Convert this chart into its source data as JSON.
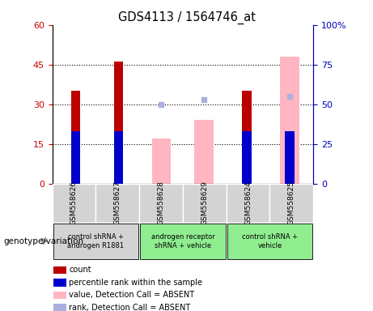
{
  "title": "GDS4113 / 1564746_at",
  "samples": [
    "GSM558626",
    "GSM558627",
    "GSM558628",
    "GSM558629",
    "GSM558624",
    "GSM558625"
  ],
  "count_values": [
    35,
    46,
    null,
    null,
    35,
    null
  ],
  "percentile_values": [
    33,
    33,
    null,
    null,
    33,
    33
  ],
  "absent_value_bars": [
    null,
    null,
    17,
    24,
    null,
    48
  ],
  "absent_rank_dots": [
    null,
    null,
    50,
    53,
    null,
    55
  ],
  "ylim_left": [
    0,
    60
  ],
  "ylim_right": [
    0,
    100
  ],
  "yticks_left": [
    0,
    15,
    30,
    45,
    60
  ],
  "yticks_right": [
    0,
    25,
    50,
    75,
    100
  ],
  "left_axis_color": "#cc0000",
  "right_axis_color": "#0000bb",
  "count_color": "#bb0000",
  "percentile_color": "#0000cc",
  "absent_value_color": "#ffb6c1",
  "absent_rank_color": "#aab0dd",
  "sample_bg_color": "#d3d3d3",
  "group1_color": "#d3d3d3",
  "group2_color": "#90ee90",
  "group3_color": "#90ee90",
  "groups": [
    {
      "start": 0,
      "end": 1,
      "label": "control shRNA +\nandrogen R1881",
      "color": "#d3d3d3"
    },
    {
      "start": 2,
      "end": 3,
      "label": "androgen receptor\nshRNA + vehicle",
      "color": "#90ee90"
    },
    {
      "start": 4,
      "end": 5,
      "label": "control shRNA +\nvehicle",
      "color": "#90ee90"
    }
  ],
  "legend_items": [
    {
      "color": "#bb0000",
      "label": "count"
    },
    {
      "color": "#0000cc",
      "label": "percentile rank within the sample"
    },
    {
      "color": "#ffb6c1",
      "label": "value, Detection Call = ABSENT"
    },
    {
      "color": "#aab0dd",
      "label": "rank, Detection Call = ABSENT"
    }
  ]
}
